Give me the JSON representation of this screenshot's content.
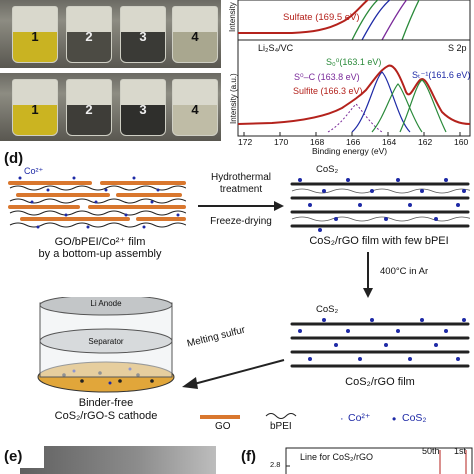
{
  "photos": {
    "vials": [
      "1",
      "2",
      "3",
      "4"
    ],
    "liquid_colors": [
      "#c8b21e",
      "#4c4b44",
      "#3a3a36",
      "#9c9a88"
    ]
  },
  "xps": {
    "top_labels": {
      "ylabel": "Intensity",
      "sulfate": "Sulfate (169.5 eV)"
    },
    "bottom": {
      "sample": "Li₂S₄/VC",
      "orbital": "S 2p",
      "ylabel": "Intensity (a.u.)",
      "peak_s0": "S₀⁰(163.1 eV)",
      "peak_s0c": "S⁰–C (163.8 eV)",
      "peak_st": "Sₜ⁻¹(161.6 eV)",
      "sulfite": "Sulfite (166.3 eV)"
    },
    "xticks": [
      "172",
      "170",
      "168",
      "166",
      "164",
      "162",
      "160"
    ],
    "xlabel": "Binding energy (eV)"
  },
  "panel_d": {
    "letter": "(d)",
    "co_label": "Co²⁺",
    "film1_caption_line1": "GO/bPEI/Co²⁺ film",
    "film1_caption_line2": "by a bottom-up assembly",
    "arrow1_top": "Hydrothermal",
    "arrow1_top2": "treatment",
    "arrow1_bottom": "Freeze-drying",
    "cos2_label_top": "CoS₂",
    "film2_caption": "CoS₂/rGO film with few bPEI",
    "arrow2": "400°C in Ar",
    "cos2_label_mid": "CoS₂",
    "film3_caption": "CoS₂/rGO film",
    "arrow3": "Melting sulfur",
    "cell_anode": "Li Anode",
    "cell_separator": "Separator",
    "cell_caption1": "Binder-free",
    "cell_caption2": "CoS₂/rGO-S cathode",
    "legend_go": "GO",
    "legend_bpei": "bPEI",
    "legend_co": "Co²⁺",
    "legend_cos2": "CoS₂"
  },
  "panel_e": {
    "letter": "(e)"
  },
  "panel_f": {
    "letter": "(f)",
    "ytick": "2.8",
    "line_label": "Line for CoS₂/rGO",
    "cycle_50": "50th",
    "cycle_1": "1st"
  },
  "colors": {
    "go_orange": "#d9772e",
    "cos2_blue": "#1e2aa6",
    "fit_red": "#b4221c"
  }
}
